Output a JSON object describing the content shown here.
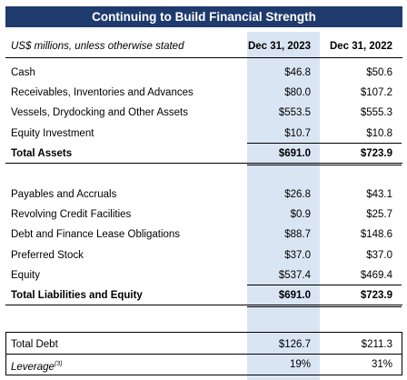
{
  "title": "Continuing to Build Financial Strength",
  "header": {
    "label": "US$ millions, unless otherwise stated",
    "columns": [
      "Dec 31, 2023",
      "Dec 31, 2022"
    ]
  },
  "sections": [
    {
      "rows": [
        {
          "label": "Cash",
          "values": [
            "$46.8",
            "$50.6"
          ]
        },
        {
          "label": "Receivables, Inventories and Advances",
          "values": [
            "$80.0",
            "$107.2"
          ]
        },
        {
          "label": "Vessels, Drydocking and Other Assets",
          "values": [
            "$553.5",
            "$555.3"
          ]
        },
        {
          "label": "Equity Investment",
          "values": [
            "$10.7",
            "$10.8"
          ]
        }
      ],
      "total": {
        "label": "Total Assets",
        "values": [
          "$691.0",
          "$723.9"
        ]
      }
    },
    {
      "rows": [
        {
          "label": "Payables and Accruals",
          "values": [
            "$26.8",
            "$43.1"
          ]
        },
        {
          "label": "Revolving Credit Facilities",
          "values": [
            "$0.9",
            "$25.7"
          ]
        },
        {
          "label": "Debt and Finance Lease Obligations",
          "values": [
            "$88.7",
            "$148.6"
          ]
        },
        {
          "label": "Preferred Stock",
          "values": [
            "$37.0",
            "$37.0"
          ]
        },
        {
          "label": "Equity",
          "values": [
            "$537.4",
            "$469.4"
          ]
        }
      ],
      "total": {
        "label": "Total Liabilities and Equity",
        "values": [
          "$691.0",
          "$723.9"
        ]
      }
    }
  ],
  "summary": [
    {
      "label": "Total Debt",
      "values": [
        "$126.7",
        "$211.3"
      ]
    },
    {
      "label": "Leverage",
      "note": "(3)",
      "values": [
        "19%",
        "31%"
      ]
    }
  ]
}
